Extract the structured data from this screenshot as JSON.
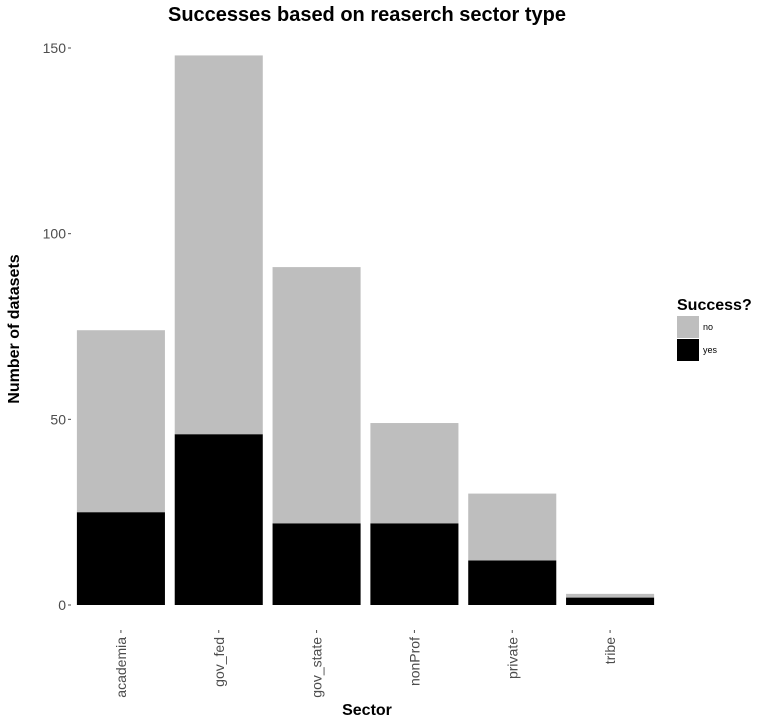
{
  "chart_data": {
    "type": "bar",
    "stacked": true,
    "title": "Successes based on reaserch sector type",
    "xlabel": "Sector",
    "ylabel": "Number of datasets",
    "categories": [
      "academia",
      "gov_fed",
      "gov_state",
      "nonProf",
      "private",
      "tribe"
    ],
    "series": [
      {
        "name": "yes",
        "values": [
          25,
          46,
          22,
          22,
          12,
          2
        ],
        "color": "#000000"
      },
      {
        "name": "no",
        "values": [
          49,
          102,
          69,
          27,
          18,
          1
        ],
        "color": "#bebebe"
      }
    ],
    "ylim": [
      0,
      150
    ],
    "yticks": [
      0,
      50,
      100,
      150
    ],
    "grid": false,
    "legend": {
      "title": "Success?",
      "position": "right",
      "entries": [
        {
          "label": "no",
          "color": "#bebebe"
        },
        {
          "label": "yes",
          "color": "#000000"
        }
      ]
    }
  }
}
